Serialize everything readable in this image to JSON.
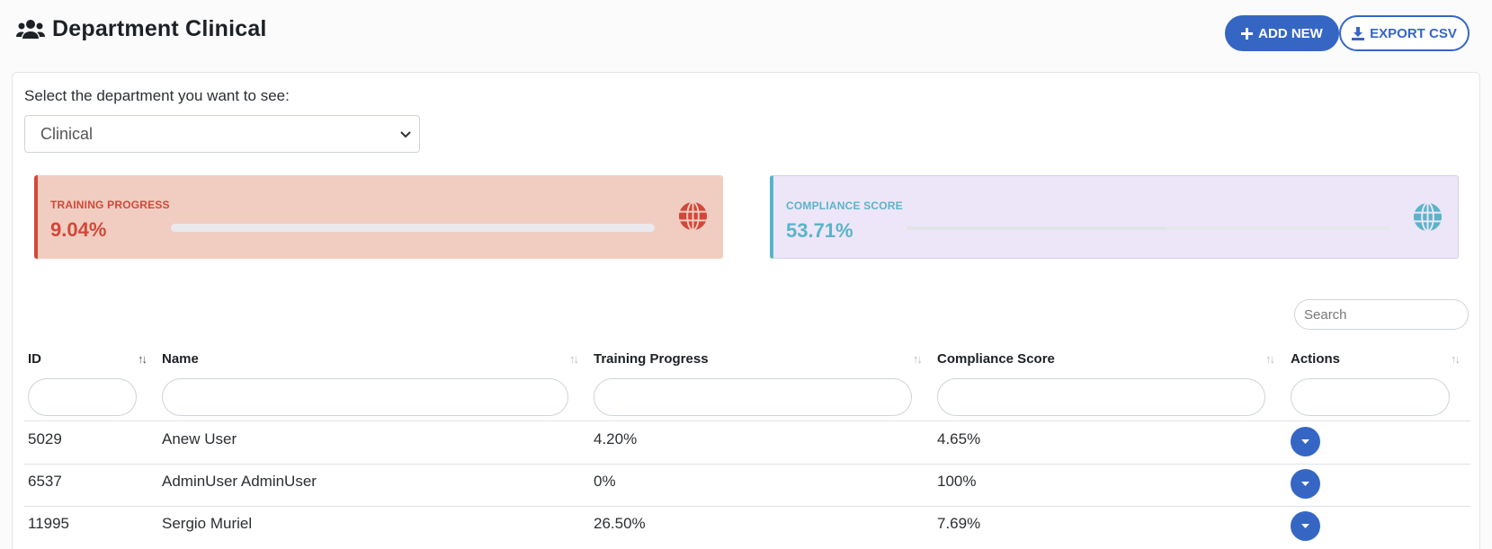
{
  "header": {
    "title": "Department Clinical",
    "title_icon": "users-icon",
    "add_label": "ADD NEW",
    "export_label": "EXPORT CSV"
  },
  "department": {
    "label": "Select the department you want to see:",
    "selected": "Clinical"
  },
  "stats": {
    "training": {
      "label": "TRAINING PROGRESS",
      "value": "9.04%",
      "progress_pct": 9.04,
      "color": "#d1483a",
      "bg": "#f1cdc1"
    },
    "compliance": {
      "label": "COMPLIANCE SCORE",
      "value": "53.71%",
      "progress_pct": 53.71,
      "color": "#5ab4c8",
      "bg": "#ede6f8"
    }
  },
  "search": {
    "placeholder": "Search"
  },
  "table": {
    "columns": [
      "ID",
      "Name",
      "Training Progress",
      "Compliance Score",
      "Actions"
    ],
    "rows": [
      {
        "id": "5029",
        "name": "Anew User",
        "training": "4.20%",
        "compliance": "4.65%"
      },
      {
        "id": "6537",
        "name": "AdminUser AdminUser",
        "training": "0%",
        "compliance": "100%"
      },
      {
        "id": "11995",
        "name": "Sergio Muriel",
        "training": "26.50%",
        "compliance": "7.69%"
      }
    ]
  },
  "colors": {
    "accent": "#3566c4",
    "danger": "#d1483a",
    "info": "#5ab4c8"
  }
}
